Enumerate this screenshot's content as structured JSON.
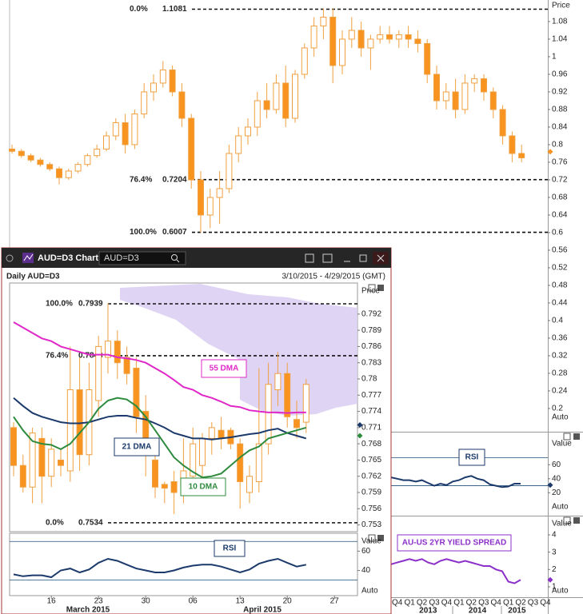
{
  "window": {
    "title": "AUD=D3 Chart",
    "search": "AUD=D3",
    "header": "Daily AUD=D3",
    "range": "3/10/2015 - 4/29/2015 (GMT)"
  },
  "chart_data": [
    {
      "type": "candlestick",
      "y_label": "Price",
      "auto_label": "Auto",
      "ylim": [
        0.169,
        1.129
      ],
      "yticks": [
        1.08,
        1.04,
        1,
        0.96,
        0.92,
        0.88,
        0.84,
        0.8,
        0.76,
        0.72,
        0.68,
        0.64,
        0.6,
        0.56,
        0.52,
        0.48,
        0.44,
        0.4,
        0.36,
        0.32,
        0.28,
        0.24,
        0.2
      ],
      "fib": [
        {
          "label": "0.0%",
          "value": 1.1081
        },
        {
          "label": "76.4%",
          "value": 0.7204
        },
        {
          "label": "100.0%",
          "value": 0.6007
        }
      ],
      "up_color": "#ffffff",
      "down_color": "#f7931e",
      "wick_color": "#f0a040",
      "markers": [
        {
          "value": 0.784,
          "color": "#f7931e"
        }
      ],
      "candles": [
        [
          0.79,
          0.8,
          0.78,
          0.785
        ],
        [
          0.785,
          0.79,
          0.77,
          0.775
        ],
        [
          0.775,
          0.78,
          0.76,
          0.765
        ],
        [
          0.765,
          0.77,
          0.75,
          0.755
        ],
        [
          0.755,
          0.76,
          0.74,
          0.745
        ],
        [
          0.745,
          0.75,
          0.71,
          0.725
        ],
        [
          0.725,
          0.745,
          0.72,
          0.74
        ],
        [
          0.74,
          0.76,
          0.735,
          0.755
        ],
        [
          0.755,
          0.78,
          0.75,
          0.775
        ],
        [
          0.775,
          0.8,
          0.77,
          0.79
        ],
        [
          0.79,
          0.83,
          0.785,
          0.82
        ],
        [
          0.82,
          0.86,
          0.81,
          0.85
        ],
        [
          0.85,
          0.87,
          0.78,
          0.8
        ],
        [
          0.8,
          0.88,
          0.79,
          0.87
        ],
        [
          0.87,
          0.94,
          0.86,
          0.92
        ],
        [
          0.92,
          0.96,
          0.9,
          0.94
        ],
        [
          0.94,
          0.99,
          0.93,
          0.97
        ],
        [
          0.97,
          0.98,
          0.91,
          0.92
        ],
        [
          0.92,
          0.94,
          0.84,
          0.86
        ],
        [
          0.86,
          0.87,
          0.7,
          0.72
        ],
        [
          0.72,
          0.74,
          0.6,
          0.64
        ],
        [
          0.64,
          0.7,
          0.61,
          0.68
        ],
        [
          0.68,
          0.74,
          0.62,
          0.7
        ],
        [
          0.7,
          0.8,
          0.69,
          0.78
        ],
        [
          0.78,
          0.84,
          0.76,
          0.82
        ],
        [
          0.82,
          0.86,
          0.8,
          0.84
        ],
        [
          0.84,
          0.92,
          0.82,
          0.9
        ],
        [
          0.9,
          0.94,
          0.86,
          0.88
        ],
        [
          0.88,
          0.96,
          0.87,
          0.94
        ],
        [
          0.94,
          0.98,
          0.84,
          0.86
        ],
        [
          0.86,
          0.97,
          0.85,
          0.96
        ],
        [
          0.96,
          1.03,
          0.95,
          1.02
        ],
        [
          1.02,
          1.09,
          1.0,
          1.07
        ],
        [
          1.07,
          1.11,
          1.04,
          1.09
        ],
        [
          1.09,
          1.11,
          0.94,
          0.98
        ],
        [
          0.98,
          1.06,
          0.96,
          1.04
        ],
        [
          1.04,
          1.09,
          1.02,
          1.06
        ],
        [
          1.06,
          1.08,
          1.0,
          1.02
        ],
        [
          1.02,
          1.05,
          0.97,
          1.04
        ],
        [
          1.04,
          1.07,
          1.03,
          1.05
        ],
        [
          1.05,
          1.07,
          1.03,
          1.04
        ],
        [
          1.04,
          1.06,
          1.02,
          1.05
        ],
        [
          1.05,
          1.07,
          1.02,
          1.04
        ],
        [
          1.04,
          1.06,
          1.01,
          1.03
        ],
        [
          1.03,
          1.04,
          0.94,
          0.96
        ],
        [
          0.96,
          0.98,
          0.88,
          0.9
        ],
        [
          0.9,
          0.94,
          0.88,
          0.92
        ],
        [
          0.92,
          0.95,
          0.86,
          0.88
        ],
        [
          0.88,
          0.96,
          0.87,
          0.94
        ],
        [
          0.94,
          0.96,
          0.92,
          0.95
        ],
        [
          0.95,
          0.96,
          0.9,
          0.92
        ],
        [
          0.92,
          0.93,
          0.86,
          0.88
        ],
        [
          0.88,
          0.89,
          0.8,
          0.82
        ],
        [
          0.82,
          0.83,
          0.76,
          0.78
        ],
        [
          0.78,
          0.8,
          0.76,
          0.77
        ]
      ]
    },
    {
      "type": "line",
      "label": "RSI",
      "y_label": "Value",
      "auto_label": "Auto",
      "ylim": [
        -7,
        98
      ],
      "yticks": [
        60,
        40,
        20
      ],
      "levels": [
        70,
        30
      ],
      "xlim": [
        -0.5,
        12.2
      ],
      "markers": [
        {
          "value": 31,
          "color": "#1b3a6b"
        }
      ],
      "series": [
        {
          "color": "#1b3a6b",
          "x": [
            -0.5,
            0,
            0.5,
            1,
            1.5,
            2,
            2.5,
            3,
            3.5,
            4,
            4.5,
            5,
            5.5,
            6,
            6.5,
            7,
            7.5,
            8,
            8.5,
            9,
            9.5,
            10
          ],
          "values": [
            42,
            40,
            38,
            38,
            36,
            38,
            34,
            30,
            33,
            31,
            36,
            38,
            42,
            44,
            40,
            38,
            32,
            30,
            28,
            29,
            33,
            33
          ]
        }
      ]
    },
    {
      "type": "line",
      "label": "AU-US 2YR YIELD SPREAD",
      "y_label": "Value",
      "auto_label": "Auto",
      "ylim": [
        0.49,
        4.97
      ],
      "yticks": [
        4,
        3,
        2,
        1
      ],
      "xlim": [
        -0.5,
        12.2
      ],
      "markers": [
        {
          "value": 1.4,
          "color": "#8b2fc9"
        }
      ],
      "xticks": [
        {
          "value": 0,
          "label": "Q4"
        },
        {
          "value": 1,
          "label": "Q1"
        },
        {
          "value": 2,
          "label": "Q2"
        },
        {
          "value": 3,
          "label": "Q3"
        },
        {
          "value": 4,
          "label": "Q4"
        },
        {
          "value": 5,
          "label": "Q1"
        },
        {
          "value": 6,
          "label": "Q2"
        },
        {
          "value": 7,
          "label": "Q3"
        },
        {
          "value": 8,
          "label": "Q4"
        },
        {
          "value": 9,
          "label": "Q1"
        },
        {
          "value": 10,
          "label": "Q2"
        },
        {
          "value": 11,
          "label": "Q3"
        },
        {
          "value": 12,
          "label": "Q4"
        }
      ],
      "year_ticks": [
        {
          "value": 2.5,
          "label": "2013"
        },
        {
          "value": 6.5,
          "label": "2014"
        },
        {
          "value": 9.7,
          "label": "2015"
        }
      ],
      "series": [
        {
          "color": "#8b2fc9",
          "x": [
            -0.5,
            0,
            0.5,
            1,
            1.5,
            2,
            2.5,
            3,
            3.5,
            4,
            4.5,
            5,
            5.5,
            6,
            6.5,
            7,
            7.5,
            8,
            8.5,
            9,
            9.5,
            10
          ],
          "values": [
            2.3,
            2.4,
            2.5,
            2.6,
            2.5,
            2.6,
            2.4,
            2.3,
            2.5,
            2.6,
            2.5,
            2.4,
            2.5,
            2.4,
            2.3,
            2.2,
            2.2,
            2.0,
            1.9,
            1.3,
            1.2,
            1.4
          ]
        }
      ]
    },
    {
      "type": "candlestick",
      "y_label": "Price",
      "ylim": [
        0.7522,
        0.7973
      ],
      "yticks": [
        0.792,
        0.789,
        0.786,
        0.783,
        0.78,
        0.777,
        0.774,
        0.771,
        0.768,
        0.765,
        0.762,
        0.759,
        0.756,
        0.753
      ],
      "fib": [
        {
          "label": "100.0%",
          "value": 0.7939
        },
        {
          "label": "76.4%",
          "value": 0.7843
        },
        {
          "label": "0.0%",
          "value": 0.7534
        }
      ],
      "up_color": "#ffffff",
      "down_color": "#f7931e",
      "wick_color": "#f0a040",
      "markers": [
        {
          "value": 0.7715,
          "color": "#1b3a6b"
        },
        {
          "value": 0.7695,
          "color": "#2e8b3e"
        }
      ],
      "categories": [
        null,
        null,
        null,
        null,
        "16",
        null,
        null,
        null,
        null,
        "23",
        null,
        null,
        null,
        null,
        "30",
        null,
        null,
        null,
        null,
        "06",
        null,
        null,
        null,
        null,
        "13",
        null,
        null,
        null,
        null,
        "20",
        null,
        null,
        null,
        null,
        "27"
      ],
      "months": [
        "March 2015",
        "April 2015"
      ],
      "candles": [
        [
          0.771,
          0.772,
          0.762,
          0.764
        ],
        [
          0.764,
          0.766,
          0.759,
          0.76
        ],
        [
          0.76,
          0.771,
          0.757,
          0.77
        ],
        [
          0.769,
          0.771,
          0.757,
          0.762
        ],
        [
          0.762,
          0.769,
          0.76,
          0.767
        ],
        [
          0.765,
          0.767,
          0.762,
          0.764
        ],
        [
          0.763,
          0.786,
          0.761,
          0.778
        ],
        [
          0.778,
          0.784,
          0.763,
          0.766
        ],
        [
          0.766,
          0.783,
          0.764,
          0.778
        ],
        [
          0.776,
          0.788,
          0.773,
          0.786
        ],
        [
          0.784,
          0.794,
          0.781,
          0.787
        ],
        [
          0.787,
          0.789,
          0.78,
          0.783
        ],
        [
          0.784,
          0.786,
          0.779,
          0.781
        ],
        [
          0.782,
          0.784,
          0.77,
          0.773
        ],
        [
          0.774,
          0.777,
          0.762,
          0.766
        ],
        [
          0.765,
          0.767,
          0.758,
          0.76
        ],
        [
          0.7605,
          0.761,
          0.757,
          0.7598
        ],
        [
          0.761,
          0.763,
          0.755,
          0.759
        ],
        [
          0.76,
          0.769,
          0.757,
          0.763
        ],
        [
          0.762,
          0.771,
          0.76,
          0.768
        ],
        [
          0.764,
          0.77,
          0.762,
          0.769
        ],
        [
          0.769,
          0.772,
          0.766,
          0.771
        ],
        [
          0.7705,
          0.773,
          0.767,
          0.769
        ],
        [
          0.7705,
          0.771,
          0.767,
          0.768
        ],
        [
          0.768,
          0.769,
          0.756,
          0.761
        ],
        [
          0.759,
          0.764,
          0.757,
          0.762
        ],
        [
          0.761,
          0.782,
          0.759,
          0.768
        ],
        [
          0.768,
          0.783,
          0.766,
          0.779
        ],
        [
          0.778,
          0.785,
          0.775,
          0.781
        ],
        [
          0.781,
          0.783,
          0.771,
          0.773
        ],
        [
          0.7725,
          0.776,
          0.769,
          0.771
        ],
        [
          0.772,
          0.78,
          0.77,
          0.779
        ],
        null,
        null,
        null
      ],
      "series": [
        {
          "name": "55 DMA",
          "color": "#e028c8",
          "values": [
            0.7905,
            0.7895,
            0.7885,
            0.7875,
            0.787,
            0.786,
            0.7855,
            0.785,
            0.7845,
            0.7845,
            0.7845,
            0.784,
            0.7838,
            0.7835,
            0.783,
            0.782,
            0.781,
            0.7798,
            0.7785,
            0.778,
            0.777,
            0.7765,
            0.7758,
            0.775,
            0.7748,
            0.7742,
            0.774,
            0.7738,
            0.7738,
            0.7737,
            0.7738,
            0.7738,
            null,
            null,
            null
          ]
        },
        {
          "name": "21 DMA",
          "color": "#1b3a6b",
          "values": [
            0.7765,
            0.775,
            0.7737,
            0.773,
            0.7725,
            0.772,
            0.7718,
            0.7718,
            0.772,
            0.7725,
            0.773,
            0.7732,
            0.7732,
            0.7728,
            0.7725,
            0.7718,
            0.771,
            0.77,
            0.7695,
            0.769,
            0.769,
            0.7688,
            0.769,
            0.7692,
            0.7695,
            0.7698,
            0.77,
            0.7705,
            0.7708,
            0.77,
            0.7695,
            0.769,
            null,
            null,
            null
          ]
        },
        {
          "name": "10 DMA",
          "color": "#2e8b3e",
          "values": [
            0.773,
            0.7705,
            0.7685,
            0.768,
            0.7678,
            0.767,
            0.768,
            0.77,
            0.772,
            0.7745,
            0.776,
            0.7765,
            0.7762,
            0.775,
            0.773,
            0.7705,
            0.768,
            0.7655,
            0.764,
            0.7628,
            0.7618,
            0.762,
            0.7625,
            0.764,
            0.7655,
            0.7668,
            0.7675,
            0.769,
            0.7695,
            0.77,
            0.7705,
            0.771,
            null,
            null,
            null
          ]
        }
      ]
    },
    {
      "type": "line",
      "label": "RSI",
      "y_label": "Value",
      "auto_label": "Auto",
      "ylim": [
        14,
        76
      ],
      "yticks": [
        60,
        40
      ],
      "levels": [
        70,
        30
      ],
      "series": [
        {
          "color": "#1b3a6b",
          "values": [
            36,
            34,
            35,
            35,
            33,
            40,
            42,
            38,
            41,
            48,
            52,
            50,
            46,
            42,
            40,
            38,
            38,
            40,
            43,
            45,
            46,
            46,
            44,
            41,
            38,
            41,
            47,
            50,
            52,
            48,
            44,
            46,
            null,
            null,
            null
          ]
        }
      ]
    }
  ]
}
